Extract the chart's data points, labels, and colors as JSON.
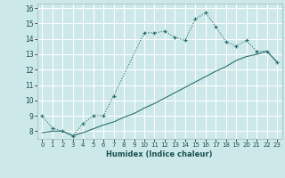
{
  "xlabel": "Humidex (Indice chaleur)",
  "bg_color": "#cce8e8",
  "grid_color": "#ffffff",
  "line_color": "#2d6e6e",
  "xlim": [
    -0.5,
    23.5
  ],
  "ylim": [
    7.5,
    16.3
  ],
  "yticks": [
    8,
    9,
    10,
    11,
    12,
    13,
    14,
    15,
    16
  ],
  "xticks": [
    0,
    1,
    2,
    3,
    4,
    5,
    6,
    7,
    8,
    9,
    10,
    11,
    12,
    13,
    14,
    15,
    16,
    17,
    18,
    19,
    20,
    21,
    22,
    23
  ],
  "series1_x": [
    0,
    1,
    2,
    3,
    4,
    5,
    6,
    7,
    10,
    11,
    12,
    13,
    14,
    15,
    16,
    17,
    18,
    19,
    20,
    21,
    22,
    23
  ],
  "series1_y": [
    9.0,
    8.2,
    8.0,
    7.7,
    8.5,
    9.0,
    9.0,
    10.3,
    14.4,
    14.4,
    14.5,
    14.1,
    13.9,
    15.3,
    15.7,
    14.8,
    13.8,
    13.55,
    13.9,
    13.2,
    13.2,
    12.5
  ],
  "series2_x": [
    0,
    1,
    2,
    3,
    4,
    5,
    6,
    7,
    8,
    9,
    10,
    11,
    12,
    13,
    14,
    15,
    16,
    17,
    18,
    19,
    20,
    21,
    22,
    23
  ],
  "series2_y": [
    7.9,
    8.0,
    8.0,
    7.7,
    7.9,
    8.15,
    8.4,
    8.6,
    8.9,
    9.15,
    9.5,
    9.8,
    10.15,
    10.5,
    10.85,
    11.2,
    11.55,
    11.9,
    12.2,
    12.6,
    12.85,
    13.0,
    13.2,
    12.5
  ]
}
